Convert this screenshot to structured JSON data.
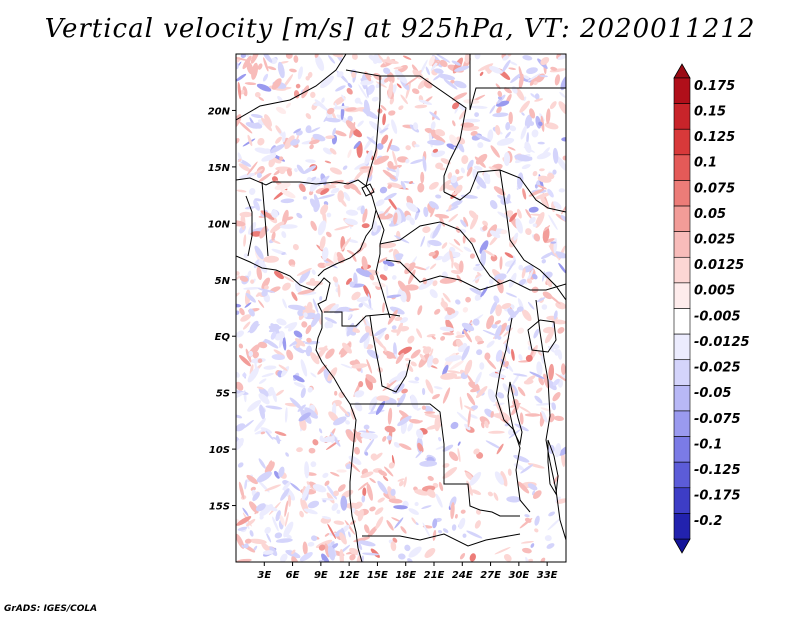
{
  "title": "Vertical velocity [m/s] at 925hPa, VT: 2020011212",
  "credit": "GrADS: IGES/COLA",
  "map": {
    "lon_range": [
      0,
      35
    ],
    "lat_range": [
      -20,
      25
    ],
    "x_ticks": [
      {
        "value": 3,
        "label": "3E"
      },
      {
        "value": 6,
        "label": "6E"
      },
      {
        "value": 9,
        "label": "9E"
      },
      {
        "value": 12,
        "label": "12E"
      },
      {
        "value": 15,
        "label": "15E"
      },
      {
        "value": 18,
        "label": "18E"
      },
      {
        "value": 21,
        "label": "21E"
      },
      {
        "value": 24,
        "label": "24E"
      },
      {
        "value": 27,
        "label": "27E"
      },
      {
        "value": 30,
        "label": "30E"
      },
      {
        "value": 33,
        "label": "33E"
      }
    ],
    "y_ticks": [
      {
        "value": 20,
        "label": "20N"
      },
      {
        "value": 15,
        "label": "15N"
      },
      {
        "value": 10,
        "label": "10N"
      },
      {
        "value": 5,
        "label": "5N"
      },
      {
        "value": 0,
        "label": "EQ"
      },
      {
        "value": -5,
        "label": "5S"
      },
      {
        "value": -10,
        "label": "10S"
      },
      {
        "value": -15,
        "label": "15S"
      }
    ]
  },
  "colorbar": {
    "entries": [
      {
        "label": "0.175",
        "color": "#b00f1a"
      },
      {
        "label": "0.15",
        "color": "#c8242a"
      },
      {
        "label": "0.125",
        "color": "#d8393a"
      },
      {
        "label": "0.1",
        "color": "#e45a58"
      },
      {
        "label": "0.075",
        "color": "#ec7c78"
      },
      {
        "label": "0.05",
        "color": "#f29c98"
      },
      {
        "label": "0.025",
        "color": "#f8bcba"
      },
      {
        "label": "0.0125",
        "color": "#fcd6d4"
      },
      {
        "label": "0.005",
        "color": "#feecec"
      },
      {
        "label": "-0.005",
        "color": "#ffffff"
      },
      {
        "label": "-0.0125",
        "color": "#ececfe"
      },
      {
        "label": "-0.025",
        "color": "#d4d4fb"
      },
      {
        "label": "-0.05",
        "color": "#b8b8f6"
      },
      {
        "label": "-0.075",
        "color": "#9a9aef"
      },
      {
        "label": "-0.1",
        "color": "#7b7be6"
      },
      {
        "label": "-0.125",
        "color": "#5c5cd8"
      },
      {
        "label": "-0.175",
        "color": "#3d3dc6"
      },
      {
        "label": "-0.2",
        "color": "#2222ae"
      }
    ],
    "top_arrow_color": "#9a0b14",
    "bottom_arrow_color": "#14149a"
  }
}
